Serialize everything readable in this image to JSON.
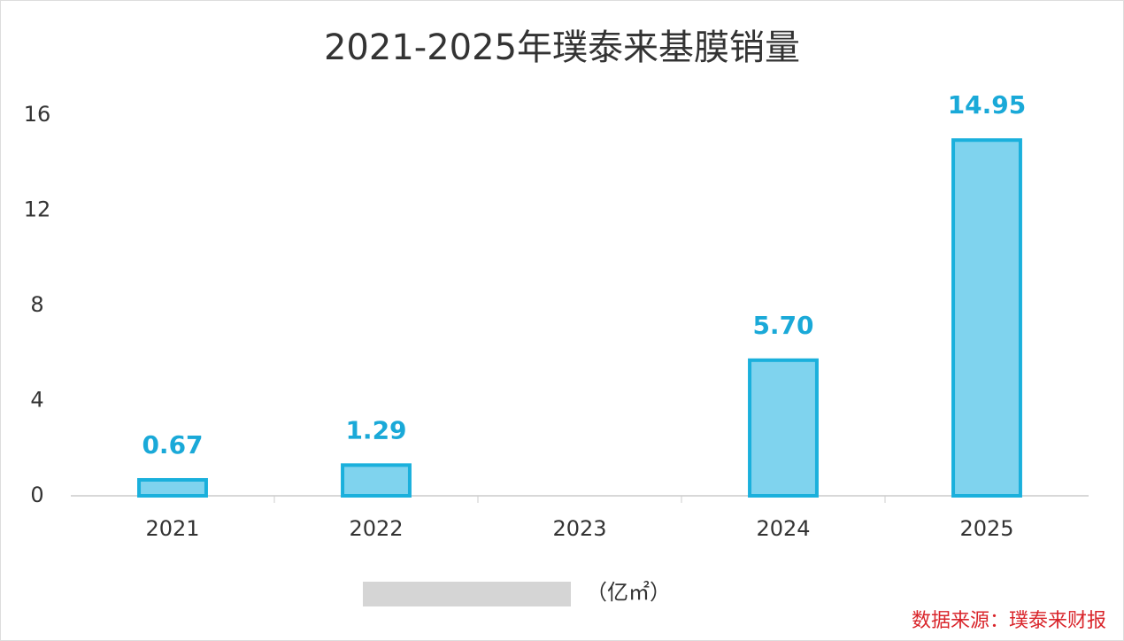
{
  "chart_data": {
    "type": "bar",
    "title": "2021-2025年璞泰来基膜销量",
    "categories": [
      "2021",
      "2022",
      "2023",
      "2024",
      "2025"
    ],
    "values": [
      0.67,
      1.29,
      null,
      5.7,
      14.95
    ],
    "value_labels": [
      "0.67",
      "1.29",
      null,
      "5.70",
      "14.95"
    ],
    "color": "#7fd3ee",
    "edge_color": "#1ab0dc",
    "label_color": "#1aa9d8",
    "ylim": [
      0,
      16
    ],
    "yticks": [
      0,
      4,
      8,
      12,
      16
    ],
    "grid": false,
    "unit": "（亿㎡）",
    "source": "数据来源：璞泰来财报"
  }
}
